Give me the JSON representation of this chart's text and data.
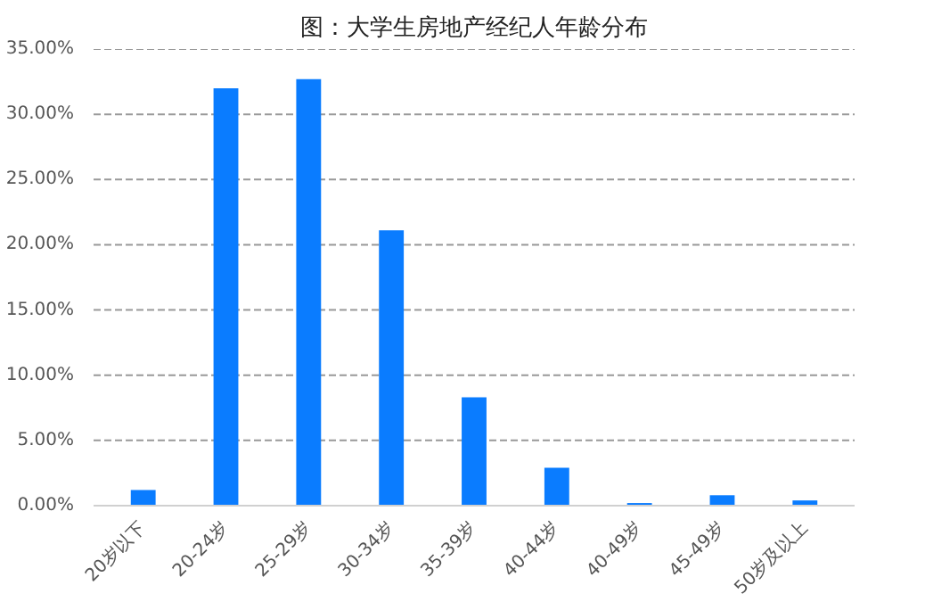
{
  "chart_data": {
    "type": "bar",
    "title": "图：大学生房地产经纪人年龄分布",
    "categories": [
      "20岁以下",
      "20-24岁",
      "25-29岁",
      "30-34岁",
      "35-39岁",
      "40-44岁",
      "40-49岁",
      "45-49岁",
      "50岁及以上"
    ],
    "values": [
      1.2,
      32.0,
      32.7,
      21.1,
      8.3,
      2.9,
      0.2,
      0.8,
      0.4
    ],
    "color": "#0a7cff",
    "ylim": [
      0,
      35
    ],
    "yticks": [
      {
        "value": 0,
        "label": "0.00%"
      },
      {
        "value": 5,
        "label": "5.00%"
      },
      {
        "value": 10,
        "label": "10.00%"
      },
      {
        "value": 15,
        "label": "15.00%"
      },
      {
        "value": 20,
        "label": "20.00%"
      },
      {
        "value": 25,
        "label": "25.00%"
      },
      {
        "value": 30,
        "label": "30.00%"
      },
      {
        "value": 35,
        "label": "35.00%"
      }
    ],
    "grid": "y"
  }
}
